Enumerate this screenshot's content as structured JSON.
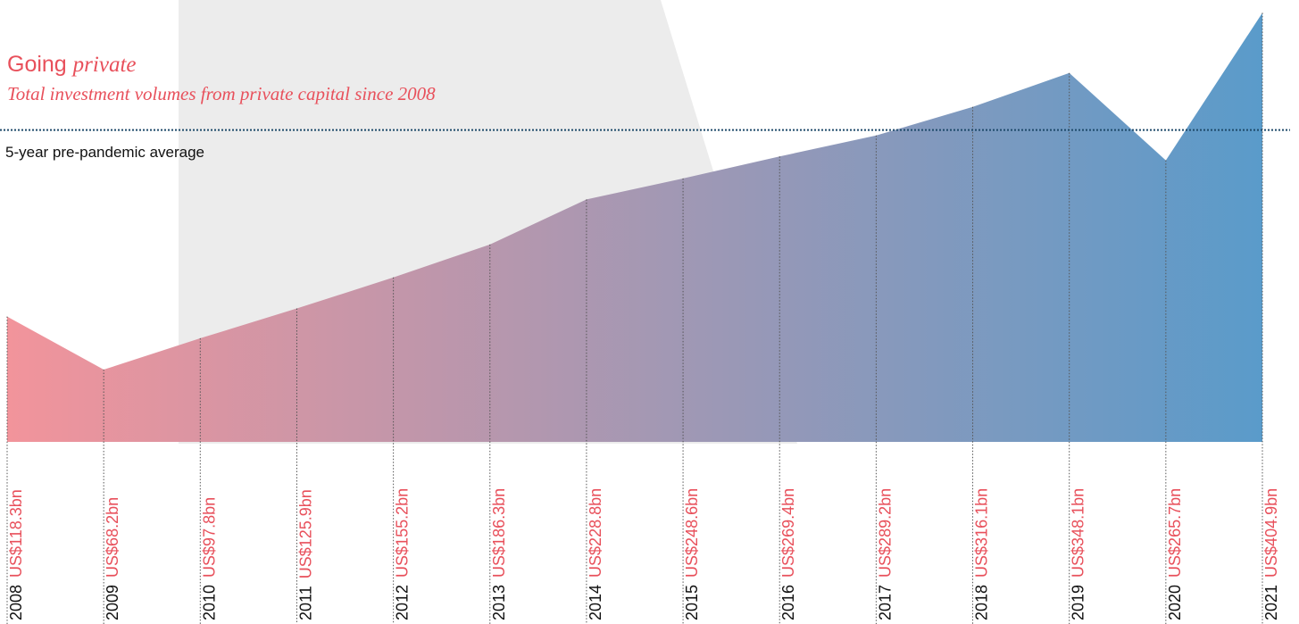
{
  "chart_data": {
    "type": "area",
    "title": "Going",
    "title_emphasis": "private",
    "subtitle": "Total investment volumes from private capital since 2008",
    "categories": [
      "2008",
      "2009",
      "2010",
      "2011",
      "2012",
      "2013",
      "2014",
      "2015",
      "2016",
      "2017",
      "2018",
      "2019",
      "2020",
      "2021"
    ],
    "values": [
      118.3,
      68.2,
      97.8,
      125.9,
      155.2,
      186.3,
      228.8,
      248.6,
      269.4,
      289.2,
      316.1,
      348.1,
      265.7,
      404.9
    ],
    "value_labels": [
      "US$118.3bn",
      "US$68.2bn",
      "US$97.8bn",
      "US$125.9bn",
      "US$155.2bn",
      "US$186.3bn",
      "US$228.8bn",
      "US$248.6bn",
      "US$269.4bn",
      "US$289.2bn",
      "US$316.1bn",
      "US$348.1bn",
      "US$265.7bn",
      "US$404.9bn"
    ],
    "average": 294.3,
    "average_label": "5-year pre-pandemic average",
    "colors": [
      "#f2949b",
      "#5a9bca"
    ],
    "label_color": "#e8505b",
    "ylim": [
      0,
      417
    ]
  }
}
